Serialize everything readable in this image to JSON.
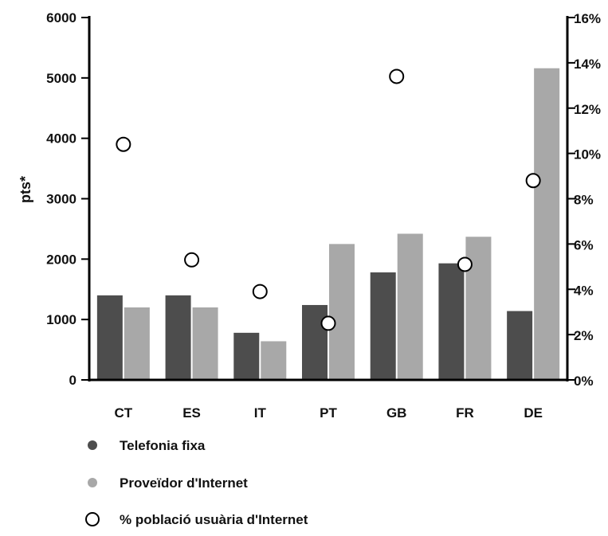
{
  "chart_data": {
    "type": "bar",
    "categories": [
      "CT",
      "ES",
      "IT",
      "PT",
      "GB",
      "FR",
      "DE"
    ],
    "series": [
      {
        "name": "Telefonia fixa",
        "axis": "left",
        "kind": "bar",
        "color": "#4d4d4d",
        "values": [
          1400,
          1400,
          780,
          1240,
          1780,
          1930,
          1140
        ]
      },
      {
        "name": "Proveïdor d'Internet",
        "axis": "left",
        "kind": "bar",
        "color": "#a8a8a8",
        "values": [
          1200,
          1200,
          640,
          2250,
          2420,
          2370,
          5160
        ]
      },
      {
        "name": "% població usuària d'Internet",
        "axis": "right",
        "kind": "scatter",
        "marker": "open-circle",
        "values": [
          10.4,
          5.3,
          3.9,
          2.5,
          13.4,
          5.1,
          8.8
        ]
      }
    ],
    "ylabel": "pts*",
    "ylim": [
      0,
      6000
    ],
    "yticks": [
      "0",
      "1000",
      "2000",
      "3000",
      "4000",
      "5000",
      "6000"
    ],
    "y2lim": [
      0,
      16
    ],
    "y2ticks": [
      "0%",
      "2%",
      "4%",
      "6%",
      "8%",
      "10%",
      "12%",
      "14%",
      "16%"
    ],
    "grid": false,
    "legend_position": "bottom-left"
  }
}
